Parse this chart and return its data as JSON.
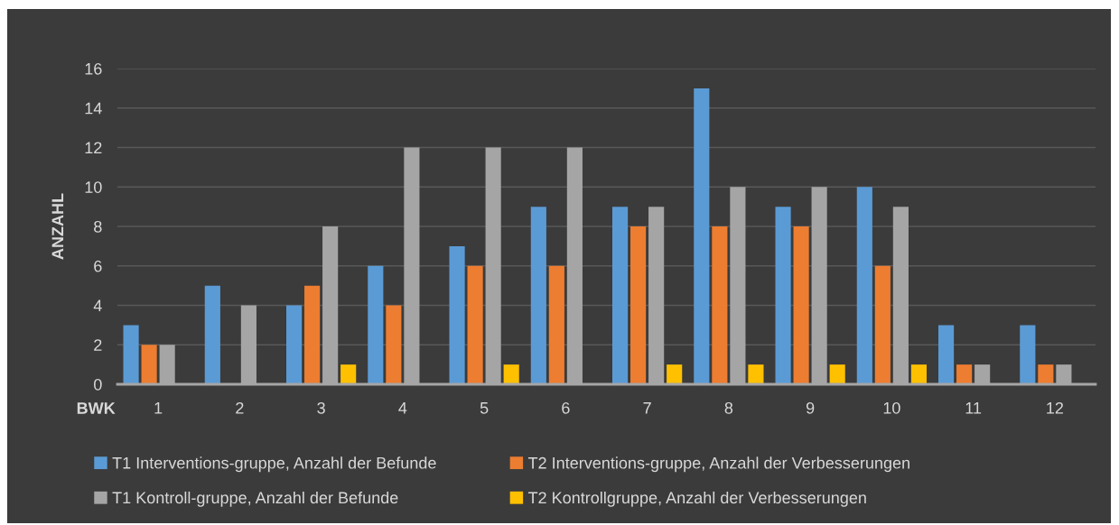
{
  "chart_data": {
    "type": "bar",
    "xlabel": "BWK",
    "ylabel": "ANZAHL",
    "categories": [
      "1",
      "2",
      "3",
      "4",
      "5",
      "6",
      "7",
      "8",
      "9",
      "10",
      "11",
      "12"
    ],
    "series": [
      {
        "name": "T1 Interventions-gruppe, Anzahl der Befunde",
        "color": "#5b9bd5",
        "values": [
          3,
          5,
          4,
          6,
          7,
          9,
          9,
          15,
          9,
          10,
          3,
          3
        ]
      },
      {
        "name": "T2 Interventions-gruppe, Anzahl der Verbesserungen",
        "color": "#ed7d31",
        "values": [
          2,
          0,
          5,
          4,
          6,
          6,
          8,
          8,
          8,
          6,
          1,
          1
        ]
      },
      {
        "name": "T1 Kontroll-gruppe, Anzahl der Befunde",
        "color": "#a5a5a5",
        "values": [
          2,
          4,
          8,
          12,
          12,
          12,
          9,
          10,
          10,
          9,
          1,
          1
        ]
      },
      {
        "name": "T2 Kontrollgruppe, Anzahl der Verbesserungen",
        "color": "#ffc000",
        "values": [
          0,
          0,
          1,
          0,
          1,
          0,
          1,
          1,
          1,
          1,
          0,
          0
        ]
      }
    ],
    "ylim": [
      0,
      16
    ],
    "yticks": [
      0,
      2,
      4,
      6,
      8,
      10,
      12,
      14,
      16
    ],
    "grid": "y",
    "legend": "bottom"
  }
}
